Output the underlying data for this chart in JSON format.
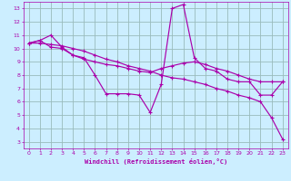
{
  "background_color": "#cceeff",
  "line_color": "#aa00aa",
  "grid_color": "#99bbbb",
  "xlabel": "Windchill (Refroidissement éolien,°C)",
  "xlim": [
    -0.5,
    23.5
  ],
  "ylim": [
    2.5,
    13.5
  ],
  "xticks": [
    0,
    1,
    2,
    3,
    4,
    5,
    6,
    7,
    8,
    9,
    10,
    11,
    12,
    13,
    14,
    15,
    16,
    17,
    18,
    19,
    20,
    21,
    22,
    23
  ],
  "yticks": [
    3,
    4,
    5,
    6,
    7,
    8,
    9,
    10,
    11,
    12,
    13
  ],
  "series1_x": [
    0,
    1,
    2,
    3,
    4,
    5,
    6,
    7,
    8,
    9,
    10,
    11,
    12,
    13,
    14,
    15,
    16,
    17,
    18,
    19,
    20,
    21,
    22,
    23
  ],
  "series1_y": [
    10.4,
    10.6,
    11.0,
    10.1,
    9.5,
    9.3,
    8.0,
    6.6,
    6.6,
    6.6,
    6.5,
    5.2,
    7.3,
    13.0,
    13.3,
    9.3,
    8.5,
    8.3,
    7.7,
    7.5,
    7.5,
    6.5,
    6.5,
    7.5
  ],
  "series2_x": [
    0,
    1,
    2,
    3,
    4,
    5,
    6,
    7,
    8,
    9,
    10,
    11,
    12,
    13,
    14,
    15,
    16,
    17,
    18,
    19,
    20,
    21,
    22,
    23
  ],
  "series2_y": [
    10.4,
    10.6,
    10.1,
    10.0,
    9.5,
    9.2,
    9.0,
    8.8,
    8.7,
    8.5,
    8.3,
    8.2,
    8.5,
    8.7,
    8.9,
    9.0,
    8.8,
    8.5,
    8.3,
    8.0,
    7.7,
    7.5,
    7.5,
    7.5
  ],
  "series3_x": [
    0,
    1,
    2,
    3,
    4,
    5,
    6,
    7,
    8,
    9,
    10,
    11,
    12,
    13,
    14,
    15,
    16,
    17,
    18,
    19,
    20,
    21,
    22,
    23
  ],
  "series3_y": [
    10.4,
    10.4,
    10.3,
    10.2,
    10.0,
    9.8,
    9.5,
    9.2,
    9.0,
    8.7,
    8.5,
    8.3,
    8.0,
    7.8,
    7.7,
    7.5,
    7.3,
    7.0,
    6.8,
    6.5,
    6.3,
    6.0,
    4.8,
    3.2
  ]
}
